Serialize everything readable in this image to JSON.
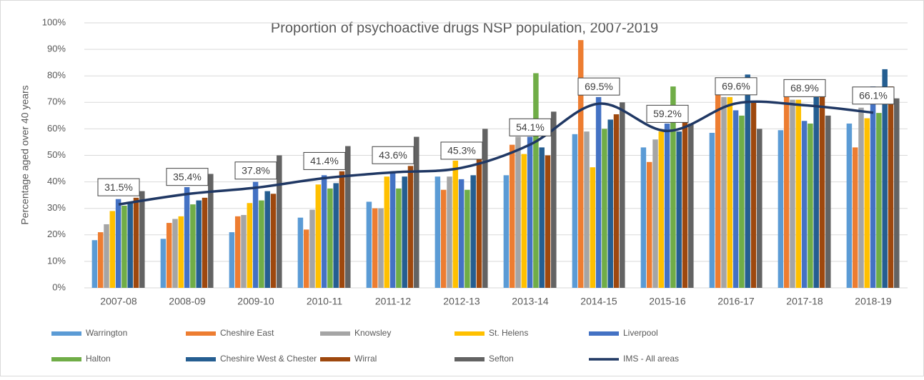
{
  "chart_data": {
    "type": "bar",
    "title": "Proportion of psychoactive drugs NSP population, 2007-2019",
    "y_label": "Percentage aged over 40 years",
    "categories": [
      "2007-08",
      "2008-09",
      "2009-10",
      "2010-11",
      "2011-12",
      "2012-13",
      "2013-14",
      "2014-15",
      "2015-16",
      "2016-17",
      "2017-18",
      "2018-19"
    ],
    "ylim": [
      0,
      100
    ],
    "yticks": [
      {
        "value": 0,
        "label": "0%"
      },
      {
        "value": 10,
        "label": "10%"
      },
      {
        "value": 20,
        "label": "20%"
      },
      {
        "value": 30,
        "label": "30%"
      },
      {
        "value": 40,
        "label": "40%"
      },
      {
        "value": 50,
        "label": "50%"
      },
      {
        "value": 60,
        "label": "60%"
      },
      {
        "value": 70,
        "label": "70%"
      },
      {
        "value": 80,
        "label": "80%"
      },
      {
        "value": 90,
        "label": "90%"
      },
      {
        "value": 100,
        "label": "100%"
      }
    ],
    "grid": true,
    "legend": "bottom",
    "series": [
      {
        "name": "Warrington",
        "color": "#5b9bd5",
        "values": [
          18,
          18.5,
          21,
          26.5,
          32.5,
          42,
          42.5,
          58,
          53,
          58.5,
          59.5,
          62
        ]
      },
      {
        "name": "Cheshire East",
        "color": "#ed7d31",
        "values": [
          21,
          24.5,
          27,
          22,
          30,
          37,
          54,
          93.5,
          47.5,
          75,
          78,
          53
        ]
      },
      {
        "name": "Knowsley",
        "color": "#a5a5a5",
        "values": [
          24,
          26,
          27.5,
          29.5,
          30,
          42,
          57,
          59,
          56,
          72,
          71,
          68
        ]
      },
      {
        "name": "St. Helens",
        "color": "#ffc000",
        "values": [
          29,
          27,
          32,
          39,
          42,
          48,
          50.5,
          45.5,
          59,
          72,
          71,
          64
        ]
      },
      {
        "name": "Liverpool",
        "color": "#4472c4",
        "values": [
          33.5,
          38,
          40,
          42.5,
          44,
          41,
          57,
          72,
          62,
          67,
          63,
          76
        ]
      },
      {
        "name": "Halton",
        "color": "#70ad47",
        "values": [
          31,
          31.5,
          33,
          37.5,
          37.5,
          37,
          81,
          60,
          76,
          65,
          62,
          66
        ]
      },
      {
        "name": "Cheshire West & Chester",
        "color": "#255e91",
        "values": [
          32,
          33,
          36.5,
          39.5,
          42,
          42.5,
          53,
          63.5,
          59,
          80.5,
          72,
          82.5
        ]
      },
      {
        "name": "Wirral",
        "color": "#9e480e",
        "values": [
          34,
          34,
          35.5,
          44,
          46,
          53,
          50,
          65.5,
          66,
          70,
          76,
          76
        ]
      },
      {
        "name": "Sefton",
        "color": "#636363",
        "values": [
          36.5,
          43,
          50,
          53.5,
          57,
          60,
          66.5,
          70,
          62,
          60,
          65,
          71.5
        ]
      },
      {
        "name": "IMS - All areas",
        "type": "line",
        "color": "#203864",
        "values": [
          31.5,
          35.4,
          37.8,
          41.4,
          43.6,
          45.3,
          54.1,
          69.5,
          59.2,
          69.6,
          68.9,
          66.1
        ],
        "value_labels": [
          "31.5%",
          "35.4%",
          "37.8%",
          "41.4%",
          "43.6%",
          "45.3%",
          "54.1%",
          "69.5%",
          "59.2%",
          "69.6%",
          "68.9%",
          "66.1%"
        ]
      }
    ]
  }
}
